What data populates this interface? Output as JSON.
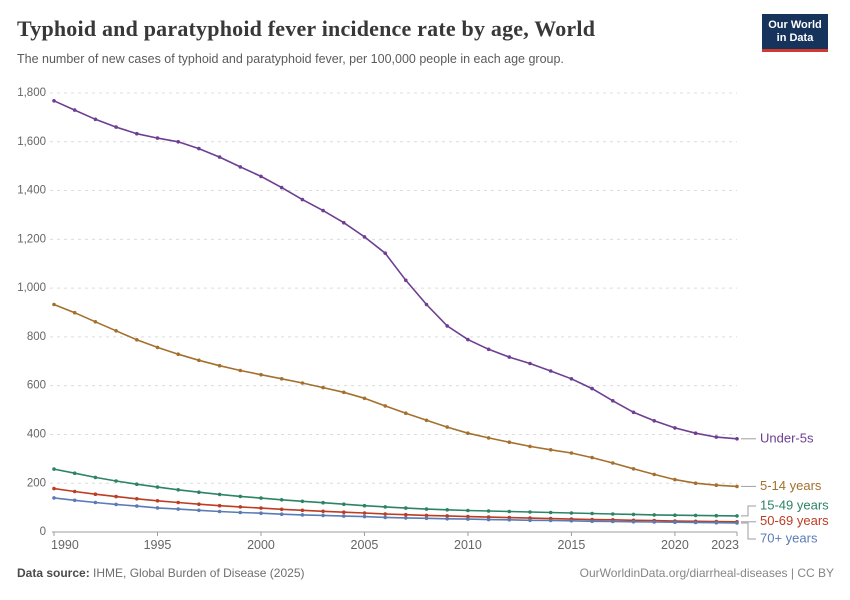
{
  "header": {
    "title": "Typhoid and paratyphoid fever incidence rate by age, World",
    "subtitle": "The number of new cases of typhoid and paratyphoid fever, per 100,000 people in each age group.",
    "logo": {
      "line1": "Our World",
      "line2": "in Data",
      "bg": "#16335B",
      "accent": "#D13830"
    }
  },
  "footer": {
    "source_label": "Data source:",
    "source_value": "IHME, Global Burden of Disease (2025)",
    "citation": "OurWorldinData.org/diarrheal-diseases | CC BY"
  },
  "chart_data": {
    "type": "line",
    "title": "Typhoid and paratyphoid fever incidence rate by age, World",
    "xlabel": "",
    "ylabel": "",
    "ylim": [
      0,
      1800
    ],
    "ytick_step": 200,
    "grid": "horizontal-dashed",
    "legend_position": "right-of-line-ends",
    "xticks": [
      1990,
      1995,
      2000,
      2005,
      2010,
      2015,
      2020,
      2023
    ],
    "x": [
      1990,
      1991,
      1992,
      1993,
      1994,
      1995,
      1996,
      1997,
      1998,
      1999,
      2000,
      2001,
      2002,
      2003,
      2004,
      2005,
      2006,
      2007,
      2008,
      2009,
      2010,
      2011,
      2012,
      2013,
      2014,
      2015,
      2016,
      2017,
      2018,
      2019,
      2020,
      2021,
      2022,
      2023
    ],
    "series": [
      {
        "name": "Under-5s",
        "color": "#6D3E91",
        "values": [
          1768,
          1730,
          1692,
          1660,
          1633,
          1615,
          1600,
          1572,
          1537,
          1497,
          1458,
          1412,
          1363,
          1318,
          1268,
          1210,
          1143,
          1032,
          933,
          845,
          789,
          749,
          717,
          691,
          660,
          628,
          588,
          538,
          491,
          456,
          427,
          405,
          389,
          382
        ]
      },
      {
        "name": "5-14 years",
        "color": "#A4702D",
        "values": [
          933,
          899,
          862,
          825,
          788,
          757,
          729,
          704,
          682,
          662,
          645,
          628,
          611,
          592,
          573,
          548,
          517,
          487,
          458,
          430,
          405,
          386,
          368,
          351,
          337,
          324,
          305,
          283,
          259,
          236,
          215,
          200,
          192,
          187
        ]
      },
      {
        "name": "15-49 years",
        "color": "#2C8465",
        "values": [
          258,
          241,
          224,
          209,
          196,
          184,
          173,
          163,
          154,
          146,
          139,
          132,
          126,
          120,
          114,
          108,
          103,
          98,
          94,
          91,
          88,
          86,
          84,
          82,
          80,
          78,
          76,
          74,
          72,
          70,
          69,
          68,
          67,
          66
        ]
      },
      {
        "name": "50-69 years",
        "color": "#BC3D22",
        "values": [
          178,
          166,
          155,
          145,
          136,
          128,
          121,
          114,
          108,
          103,
          98,
          93,
          89,
          85,
          81,
          78,
          74,
          71,
          68,
          66,
          63,
          61,
          59,
          57,
          55,
          53,
          51,
          50,
          48,
          47,
          45,
          44,
          43,
          42
        ]
      },
      {
        "name": "70+ years",
        "color": "#5B7BB5",
        "values": [
          140,
          130,
          121,
          113,
          106,
          99,
          94,
          89,
          84,
          80,
          77,
          73,
          70,
          68,
          65,
          63,
          60,
          58,
          56,
          54,
          53,
          51,
          50,
          48,
          47,
          46,
          44,
          43,
          42,
          41,
          40,
          39,
          38,
          37
        ]
      }
    ]
  }
}
